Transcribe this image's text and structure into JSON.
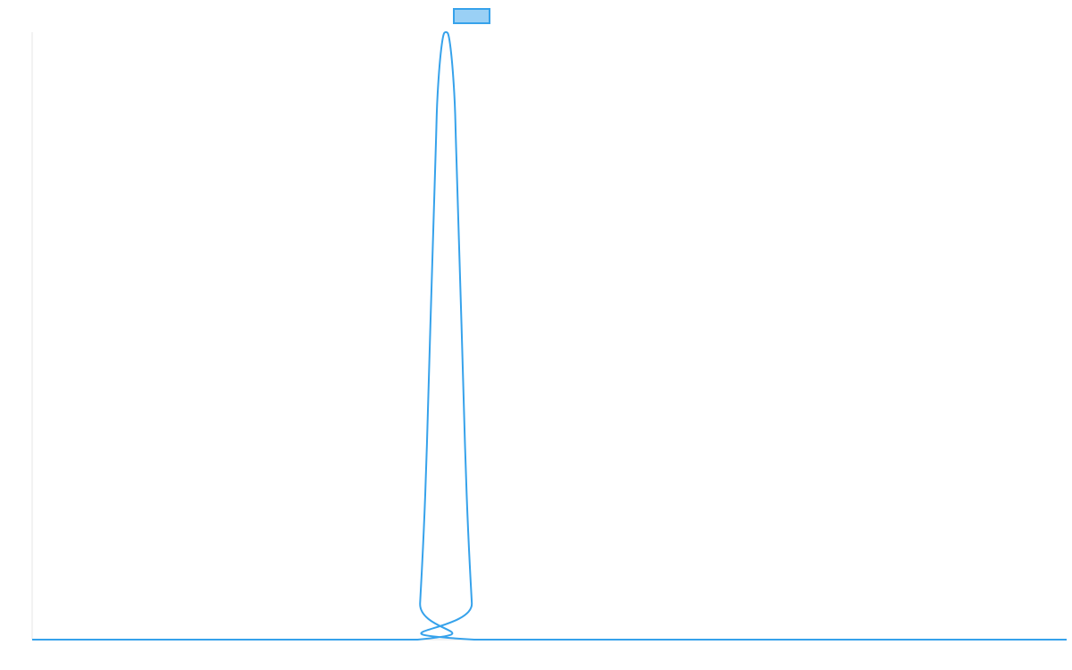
{
  "chart_data": {
    "type": "line",
    "title": "",
    "xlabel": "",
    "ylabel": "",
    "legend": {
      "position": "top-center",
      "entries": [
        {
          "name": "",
          "swatch_color": "#9ad0f5",
          "border_color": "#36a2eb"
        }
      ]
    },
    "grid": false,
    "xlim": [
      0,
      100
    ],
    "ylim": [
      0,
      1
    ],
    "series": [
      {
        "name": "",
        "color": "#36a2eb",
        "x": [
          0,
          37.26,
          37.5,
          38.0,
          38.5,
          39.0,
          39.2,
          39.6,
          40.0,
          40.4,
          40.8,
          41.0,
          41.5,
          42.0,
          42.5,
          42.74,
          100
        ],
        "y": [
          0,
          0,
          0.06,
          0.24,
          0.52,
          0.8,
          0.9,
          0.98,
          1.0,
          0.98,
          0.9,
          0.8,
          0.52,
          0.24,
          0.06,
          0,
          0
        ]
      }
    ]
  }
}
